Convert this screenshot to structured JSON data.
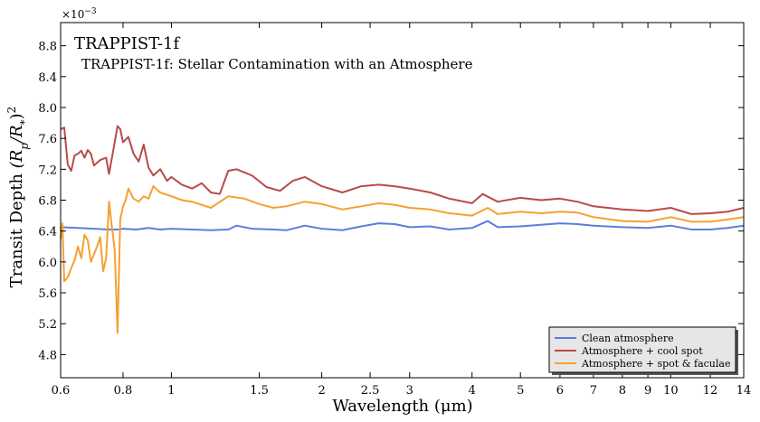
{
  "chart_data": {
    "type": "line",
    "planet_label": "TRAPPIST-1f",
    "title": "TRAPPIST-1f: Stellar Contamination with an Atmosphere",
    "xlabel": "Wavelength (μm)",
    "ylabel_main": "Transit Depth ",
    "ylabel_math": "(R",
    "ylabel_sub_p": "p",
    "ylabel_mid": "/R",
    "ylabel_sub_star": "*",
    "ylabel_end": ")",
    "ylabel_sup": "2",
    "y_offset_base": "×10",
    "y_offset_exp": "−3",
    "x_scale": "log",
    "xlim": [
      0.6,
      14
    ],
    "ylim": [
      4.5,
      9.1
    ],
    "x_ticks": [
      0.6,
      0.8,
      1,
      1.5,
      2,
      2.5,
      3,
      4,
      5,
      6,
      7,
      8,
      9,
      10,
      12,
      14
    ],
    "x_tick_labels": [
      "0.6",
      "0.8",
      "1",
      "1.5",
      "2",
      "2.5",
      "3",
      "4",
      "5",
      "6",
      "7",
      "8",
      "9",
      "10",
      "12",
      "14"
    ],
    "y_ticks": [
      4.8,
      5.2,
      5.6,
      6.0,
      6.4,
      6.8,
      7.2,
      7.6,
      8.0,
      8.4,
      8.8
    ],
    "y_tick_labels": [
      "4.8",
      "5.2",
      "5.6",
      "6.0",
      "6.4",
      "6.8",
      "7.2",
      "7.6",
      "8.0",
      "8.4",
      "8.8"
    ],
    "grid": false,
    "legend_position": "bottom-right",
    "series": [
      {
        "name": "Clean atmosphere",
        "color": "#5a7fdc",
        "points": [
          [
            0.6,
            6.45
          ],
          [
            0.65,
            6.44
          ],
          [
            0.7,
            6.43
          ],
          [
            0.75,
            6.42
          ],
          [
            0.78,
            6.42
          ],
          [
            0.8,
            6.43
          ],
          [
            0.85,
            6.42
          ],
          [
            0.9,
            6.44
          ],
          [
            0.95,
            6.42
          ],
          [
            1.0,
            6.43
          ],
          [
            1.1,
            6.42
          ],
          [
            1.2,
            6.41
          ],
          [
            1.3,
            6.42
          ],
          [
            1.35,
            6.47
          ],
          [
            1.45,
            6.43
          ],
          [
            1.6,
            6.42
          ],
          [
            1.7,
            6.41
          ],
          [
            1.85,
            6.47
          ],
          [
            2.0,
            6.43
          ],
          [
            2.2,
            6.41
          ],
          [
            2.4,
            6.46
          ],
          [
            2.6,
            6.5
          ],
          [
            2.8,
            6.49
          ],
          [
            3.0,
            6.45
          ],
          [
            3.3,
            6.46
          ],
          [
            3.6,
            6.42
          ],
          [
            4.0,
            6.44
          ],
          [
            4.3,
            6.53
          ],
          [
            4.5,
            6.45
          ],
          [
            5.0,
            6.46
          ],
          [
            5.5,
            6.48
          ],
          [
            6.0,
            6.5
          ],
          [
            6.5,
            6.49
          ],
          [
            7.0,
            6.47
          ],
          [
            8.0,
            6.45
          ],
          [
            9.0,
            6.44
          ],
          [
            10.0,
            6.47
          ],
          [
            11.0,
            6.42
          ],
          [
            12.0,
            6.42
          ],
          [
            13.0,
            6.44
          ],
          [
            14.0,
            6.47
          ]
        ]
      },
      {
        "name": "Atmosphere + cool spot",
        "color": "#b94a4a",
        "points": [
          [
            0.6,
            7.72
          ],
          [
            0.61,
            7.74
          ],
          [
            0.62,
            7.26
          ],
          [
            0.63,
            7.18
          ],
          [
            0.64,
            7.38
          ],
          [
            0.65,
            7.4
          ],
          [
            0.66,
            7.44
          ],
          [
            0.67,
            7.35
          ],
          [
            0.68,
            7.45
          ],
          [
            0.69,
            7.4
          ],
          [
            0.7,
            7.25
          ],
          [
            0.72,
            7.32
          ],
          [
            0.74,
            7.35
          ],
          [
            0.75,
            7.14
          ],
          [
            0.77,
            7.55
          ],
          [
            0.78,
            7.76
          ],
          [
            0.79,
            7.72
          ],
          [
            0.8,
            7.55
          ],
          [
            0.82,
            7.62
          ],
          [
            0.84,
            7.4
          ],
          [
            0.86,
            7.3
          ],
          [
            0.88,
            7.52
          ],
          [
            0.9,
            7.22
          ],
          [
            0.92,
            7.12
          ],
          [
            0.95,
            7.2
          ],
          [
            0.98,
            7.05
          ],
          [
            1.0,
            7.1
          ],
          [
            1.05,
            7.0
          ],
          [
            1.1,
            6.95
          ],
          [
            1.15,
            7.02
          ],
          [
            1.2,
            6.9
          ],
          [
            1.25,
            6.88
          ],
          [
            1.3,
            7.18
          ],
          [
            1.35,
            7.2
          ],
          [
            1.45,
            7.12
          ],
          [
            1.55,
            6.97
          ],
          [
            1.65,
            6.92
          ],
          [
            1.75,
            7.05
          ],
          [
            1.85,
            7.1
          ],
          [
            2.0,
            6.98
          ],
          [
            2.2,
            6.9
          ],
          [
            2.4,
            6.98
          ],
          [
            2.6,
            7.0
          ],
          [
            2.8,
            6.98
          ],
          [
            3.0,
            6.95
          ],
          [
            3.3,
            6.9
          ],
          [
            3.6,
            6.82
          ],
          [
            4.0,
            6.76
          ],
          [
            4.2,
            6.88
          ],
          [
            4.5,
            6.78
          ],
          [
            5.0,
            6.83
          ],
          [
            5.5,
            6.8
          ],
          [
            6.0,
            6.82
          ],
          [
            6.5,
            6.78
          ],
          [
            7.0,
            6.72
          ],
          [
            8.0,
            6.68
          ],
          [
            9.0,
            6.66
          ],
          [
            10.0,
            6.7
          ],
          [
            11.0,
            6.62
          ],
          [
            12.0,
            6.63
          ],
          [
            13.0,
            6.65
          ],
          [
            14.0,
            6.7
          ]
        ]
      },
      {
        "name": "Atmosphere + spot & faculae",
        "color": "#f5a131",
        "points": [
          [
            0.6,
            6.3
          ],
          [
            0.605,
            6.5
          ],
          [
            0.61,
            5.75
          ],
          [
            0.62,
            5.8
          ],
          [
            0.63,
            5.92
          ],
          [
            0.64,
            6.02
          ],
          [
            0.65,
            6.2
          ],
          [
            0.66,
            6.05
          ],
          [
            0.67,
            6.35
          ],
          [
            0.68,
            6.28
          ],
          [
            0.69,
            6.0
          ],
          [
            0.7,
            6.1
          ],
          [
            0.71,
            6.2
          ],
          [
            0.72,
            6.32
          ],
          [
            0.73,
            5.88
          ],
          [
            0.74,
            6.05
          ],
          [
            0.75,
            6.78
          ],
          [
            0.76,
            6.45
          ],
          [
            0.77,
            6.15
          ],
          [
            0.78,
            5.08
          ],
          [
            0.79,
            6.55
          ],
          [
            0.8,
            6.72
          ],
          [
            0.81,
            6.8
          ],
          [
            0.82,
            6.95
          ],
          [
            0.84,
            6.82
          ],
          [
            0.86,
            6.78
          ],
          [
            0.88,
            6.85
          ],
          [
            0.9,
            6.82
          ],
          [
            0.92,
            6.98
          ],
          [
            0.95,
            6.9
          ],
          [
            1.0,
            6.85
          ],
          [
            1.05,
            6.8
          ],
          [
            1.1,
            6.78
          ],
          [
            1.2,
            6.7
          ],
          [
            1.3,
            6.85
          ],
          [
            1.4,
            6.82
          ],
          [
            1.5,
            6.75
          ],
          [
            1.6,
            6.7
          ],
          [
            1.7,
            6.72
          ],
          [
            1.85,
            6.78
          ],
          [
            2.0,
            6.75
          ],
          [
            2.2,
            6.68
          ],
          [
            2.4,
            6.72
          ],
          [
            2.6,
            6.76
          ],
          [
            2.8,
            6.74
          ],
          [
            3.0,
            6.7
          ],
          [
            3.3,
            6.68
          ],
          [
            3.6,
            6.63
          ],
          [
            4.0,
            6.6
          ],
          [
            4.3,
            6.7
          ],
          [
            4.5,
            6.62
          ],
          [
            5.0,
            6.65
          ],
          [
            5.5,
            6.63
          ],
          [
            6.0,
            6.65
          ],
          [
            6.5,
            6.64
          ],
          [
            7.0,
            6.58
          ],
          [
            8.0,
            6.53
          ],
          [
            9.0,
            6.52
          ],
          [
            10.0,
            6.58
          ],
          [
            11.0,
            6.52
          ],
          [
            12.0,
            6.52
          ],
          [
            13.0,
            6.55
          ],
          [
            14.0,
            6.58
          ]
        ]
      }
    ]
  }
}
